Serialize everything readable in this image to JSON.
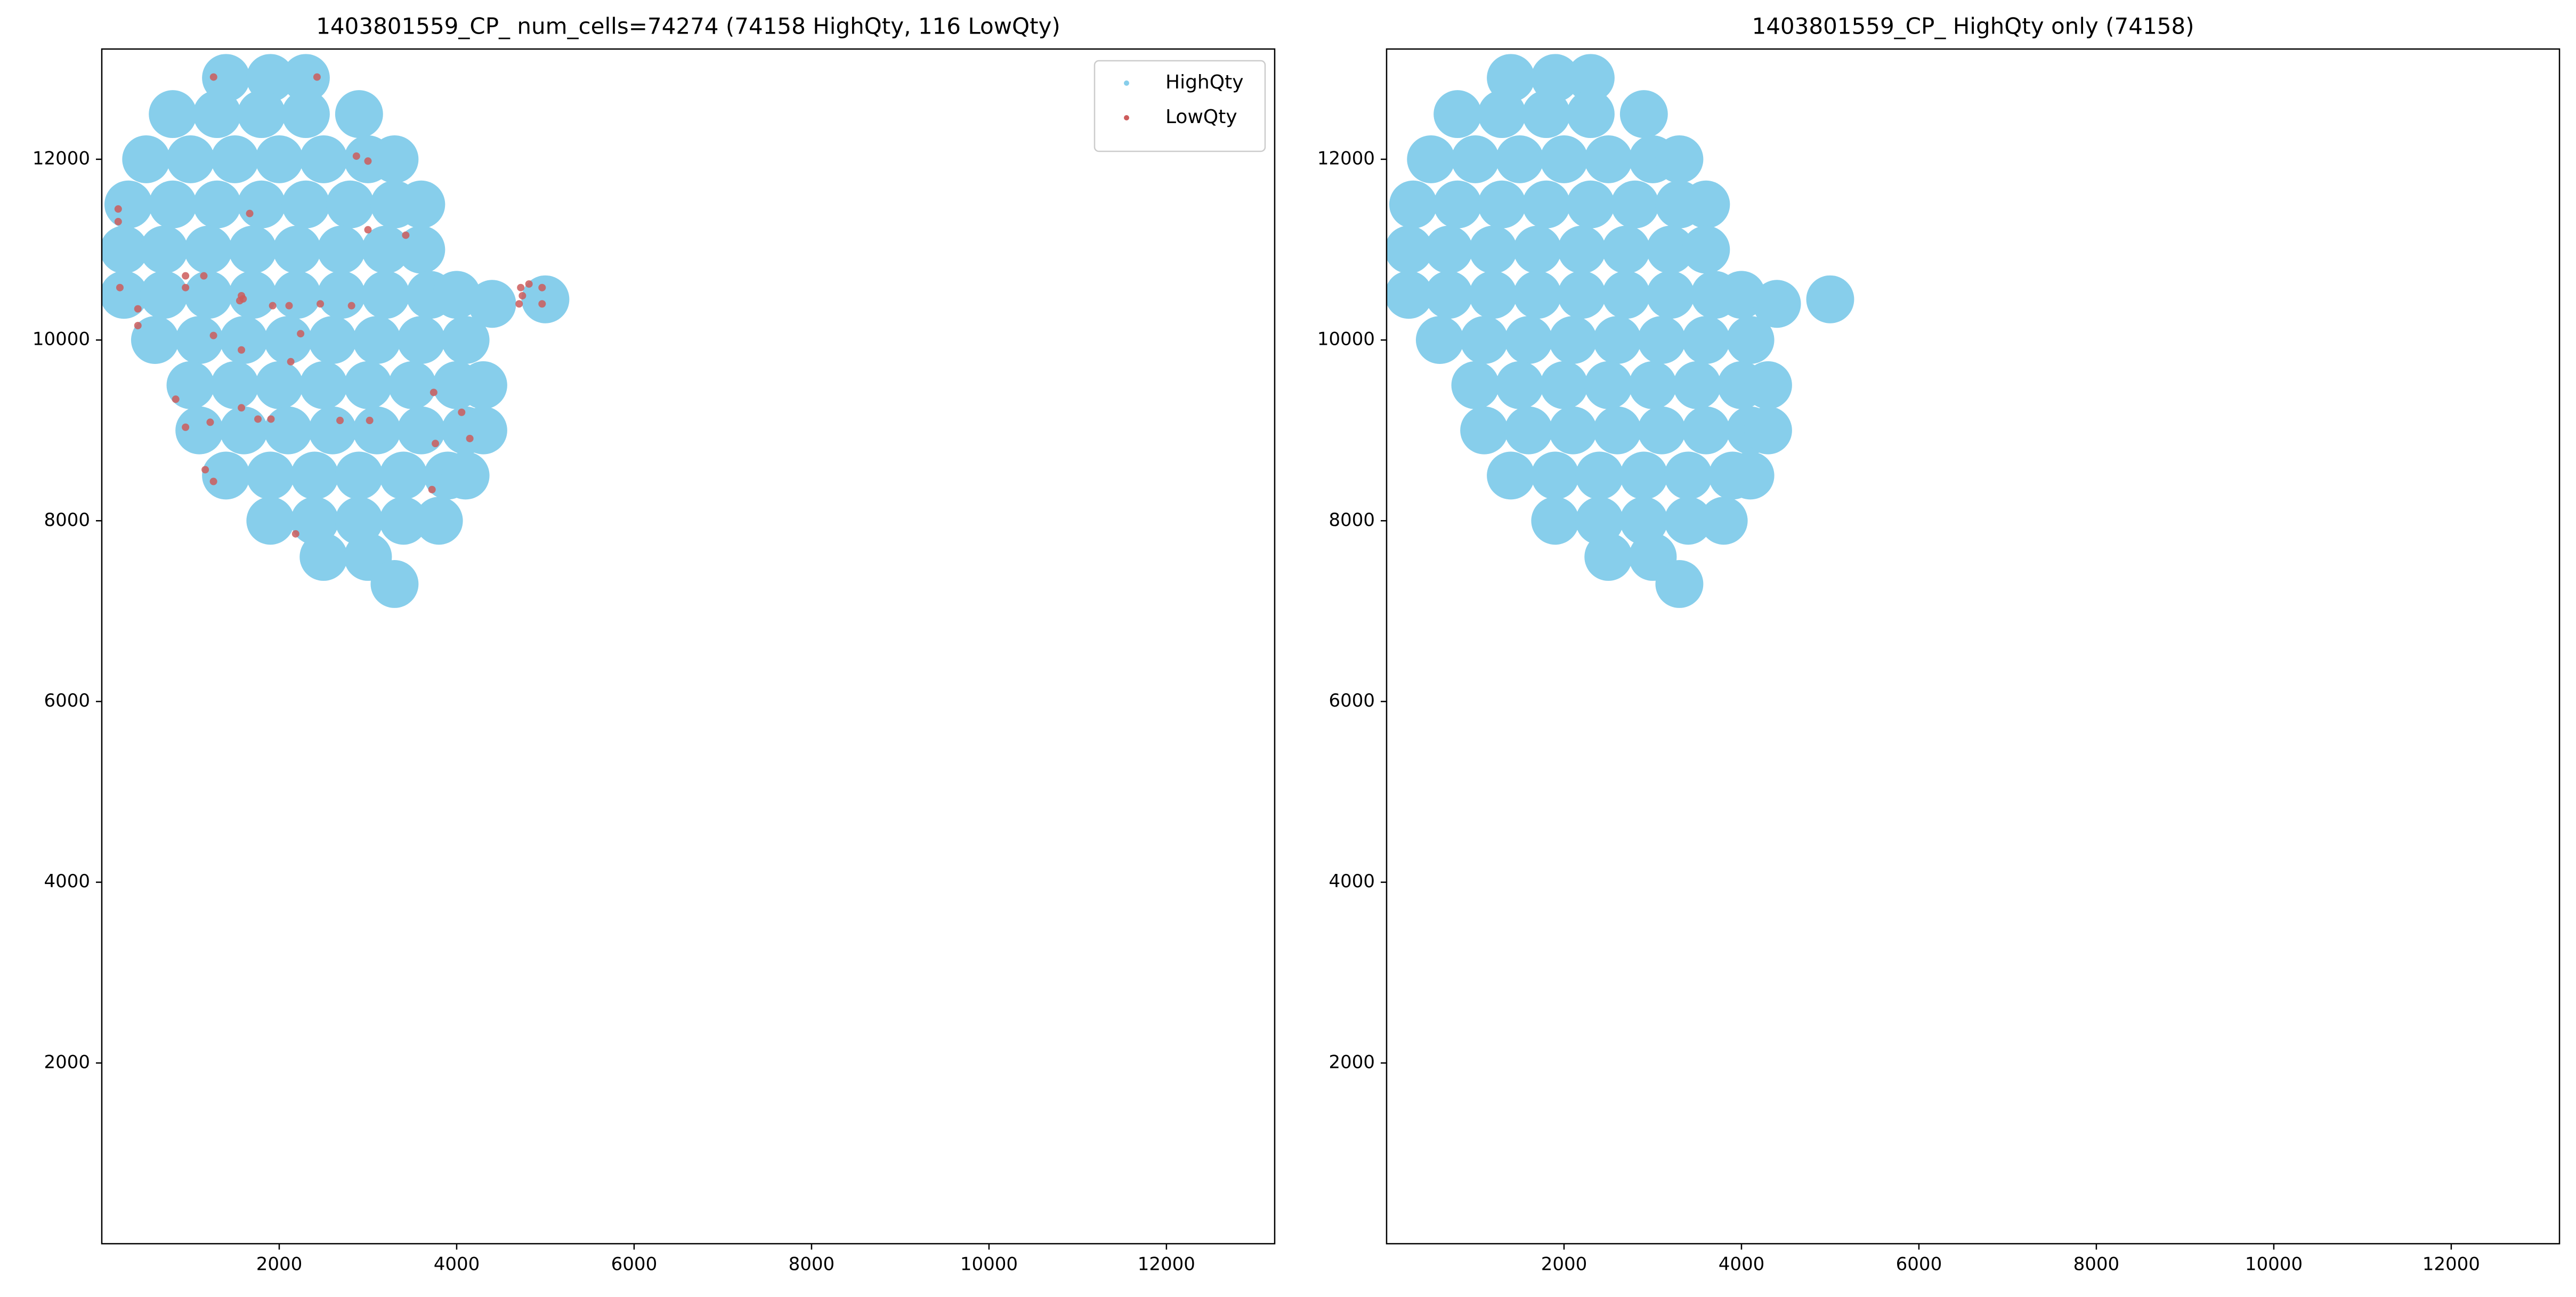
{
  "chart_data": [
    {
      "type": "scatter",
      "title": "1403801559_CP_ num_cells=74274 (74158 HighQty, 116 LowQty)",
      "xlim": [
        0,
        13220
      ],
      "ylim": [
        0,
        13220
      ],
      "xticks": [
        2000,
        4000,
        6000,
        8000,
        10000,
        12000
      ],
      "yticks": [
        2000,
        4000,
        6000,
        8000,
        10000,
        12000
      ],
      "legend": "upper right",
      "series": [
        {
          "name": "HighQty",
          "color": "#87ceeb",
          "x": [
            1400,
            1900,
            2300,
            800,
            1300,
            1800,
            2300,
            2900,
            500,
            1000,
            1500,
            2000,
            2500,
            3000,
            3300,
            300,
            800,
            1300,
            1800,
            2300,
            2800,
            3300,
            3600,
            250,
            700,
            1200,
            1700,
            2200,
            2700,
            3200,
            3600,
            250,
            700,
            1200,
            1700,
            2200,
            2700,
            3200,
            3700,
            4000,
            600,
            1100,
            1600,
            2100,
            2600,
            3100,
            3600,
            4100,
            1000,
            1500,
            2000,
            2500,
            3000,
            3500,
            4000,
            4300,
            1100,
            1600,
            2100,
            2600,
            3100,
            3600,
            4100,
            4300,
            1400,
            1900,
            2400,
            2900,
            3400,
            3900,
            4100,
            1900,
            2400,
            2900,
            3400,
            3800,
            2500,
            3000,
            4400,
            5000,
            3300
          ],
          "values": [
            12900,
            12900,
            12900,
            12500,
            12500,
            12500,
            12500,
            12500,
            12000,
            12000,
            12000,
            12000,
            12000,
            12000,
            12000,
            11500,
            11500,
            11500,
            11500,
            11500,
            11500,
            11500,
            11500,
            11000,
            11000,
            11000,
            11000,
            11000,
            11000,
            11000,
            11000,
            10500,
            10500,
            10500,
            10500,
            10500,
            10500,
            10500,
            10500,
            10500,
            10000,
            10000,
            10000,
            10000,
            10000,
            10000,
            10000,
            10000,
            9500,
            9500,
            9500,
            9500,
            9500,
            9500,
            9500,
            9500,
            9000,
            9000,
            9000,
            9000,
            9000,
            9000,
            9000,
            9000,
            8500,
            8500,
            8500,
            8500,
            8500,
            8500,
            8500,
            8000,
            8000,
            8000,
            8000,
            8000,
            7600,
            7600,
            10400,
            10450,
            7300
          ]
        },
        {
          "name": "LowQty",
          "color": "#cd5c5c",
          "x": [
            185,
            185,
            204,
            407,
            407,
            944,
            944,
            1150,
            1593,
            1555,
            1260,
            2426,
            2870,
            3000,
            3000,
            3426,
            1667,
            1926,
            2111,
            2463,
            2815,
            1259,
            1574,
            2241,
            2130,
            833,
            944,
            1222,
            1574,
            1760,
            1907,
            2685,
            3019,
            3741,
            4056,
            4148,
            3760,
            3722,
            2185,
            1166,
            1259,
            4722,
            4815,
            4963,
            4704,
            4963,
            4741,
            1574
          ],
          "values": [
            11450,
            11310,
            10580,
            10345,
            10160,
            10710,
            10580,
            10710,
            10455,
            10435,
            12910,
            12910,
            12035,
            11980,
            11220,
            11160,
            11400,
            10380,
            10380,
            10400,
            10380,
            10050,
            9890,
            10070,
            9760,
            9345,
            9035,
            9090,
            9250,
            9125,
            9125,
            9110,
            9110,
            9420,
            9200,
            8910,
            8855,
            8345,
            7855,
            8565,
            8435,
            10580,
            10620,
            10580,
            10400,
            10400,
            10490,
            10490
          ]
        }
      ]
    },
    {
      "type": "scatter",
      "title": "1403801559_CP_ HighQty only (74158)",
      "xlim": [
        0,
        13220
      ],
      "ylim": [
        0,
        13220
      ],
      "xticks": [
        2000,
        4000,
        6000,
        8000,
        10000,
        12000
      ],
      "yticks": [
        2000,
        4000,
        6000,
        8000,
        10000,
        12000
      ],
      "series": [
        {
          "color": "#87ceeb",
          "x": [
            1400,
            1900,
            2300,
            800,
            1300,
            1800,
            2300,
            2900,
            500,
            1000,
            1500,
            2000,
            2500,
            3000,
            3300,
            300,
            800,
            1300,
            1800,
            2300,
            2800,
            3300,
            3600,
            250,
            700,
            1200,
            1700,
            2200,
            2700,
            3200,
            3600,
            250,
            700,
            1200,
            1700,
            2200,
            2700,
            3200,
            3700,
            4000,
            600,
            1100,
            1600,
            2100,
            2600,
            3100,
            3600,
            4100,
            1000,
            1500,
            2000,
            2500,
            3000,
            3500,
            4000,
            4300,
            1100,
            1600,
            2100,
            2600,
            3100,
            3600,
            4100,
            4300,
            1400,
            1900,
            2400,
            2900,
            3400,
            3900,
            4100,
            1900,
            2400,
            2900,
            3400,
            3800,
            2500,
            3000,
            4400,
            5000,
            3300
          ],
          "values": [
            12900,
            12900,
            12900,
            12500,
            12500,
            12500,
            12500,
            12500,
            12000,
            12000,
            12000,
            12000,
            12000,
            12000,
            12000,
            11500,
            11500,
            11500,
            11500,
            11500,
            11500,
            11500,
            11500,
            11000,
            11000,
            11000,
            11000,
            11000,
            11000,
            11000,
            11000,
            10500,
            10500,
            10500,
            10500,
            10500,
            10500,
            10500,
            10500,
            10500,
            10000,
            10000,
            10000,
            10000,
            10000,
            10000,
            10000,
            10000,
            9500,
            9500,
            9500,
            9500,
            9500,
            9500,
            9500,
            9500,
            9000,
            9000,
            9000,
            9000,
            9000,
            9000,
            9000,
            9000,
            8500,
            8500,
            8500,
            8500,
            8500,
            8500,
            8500,
            8000,
            8000,
            8000,
            8000,
            8000,
            7600,
            7600,
            10400,
            10450,
            7300
          ]
        }
      ]
    }
  ]
}
